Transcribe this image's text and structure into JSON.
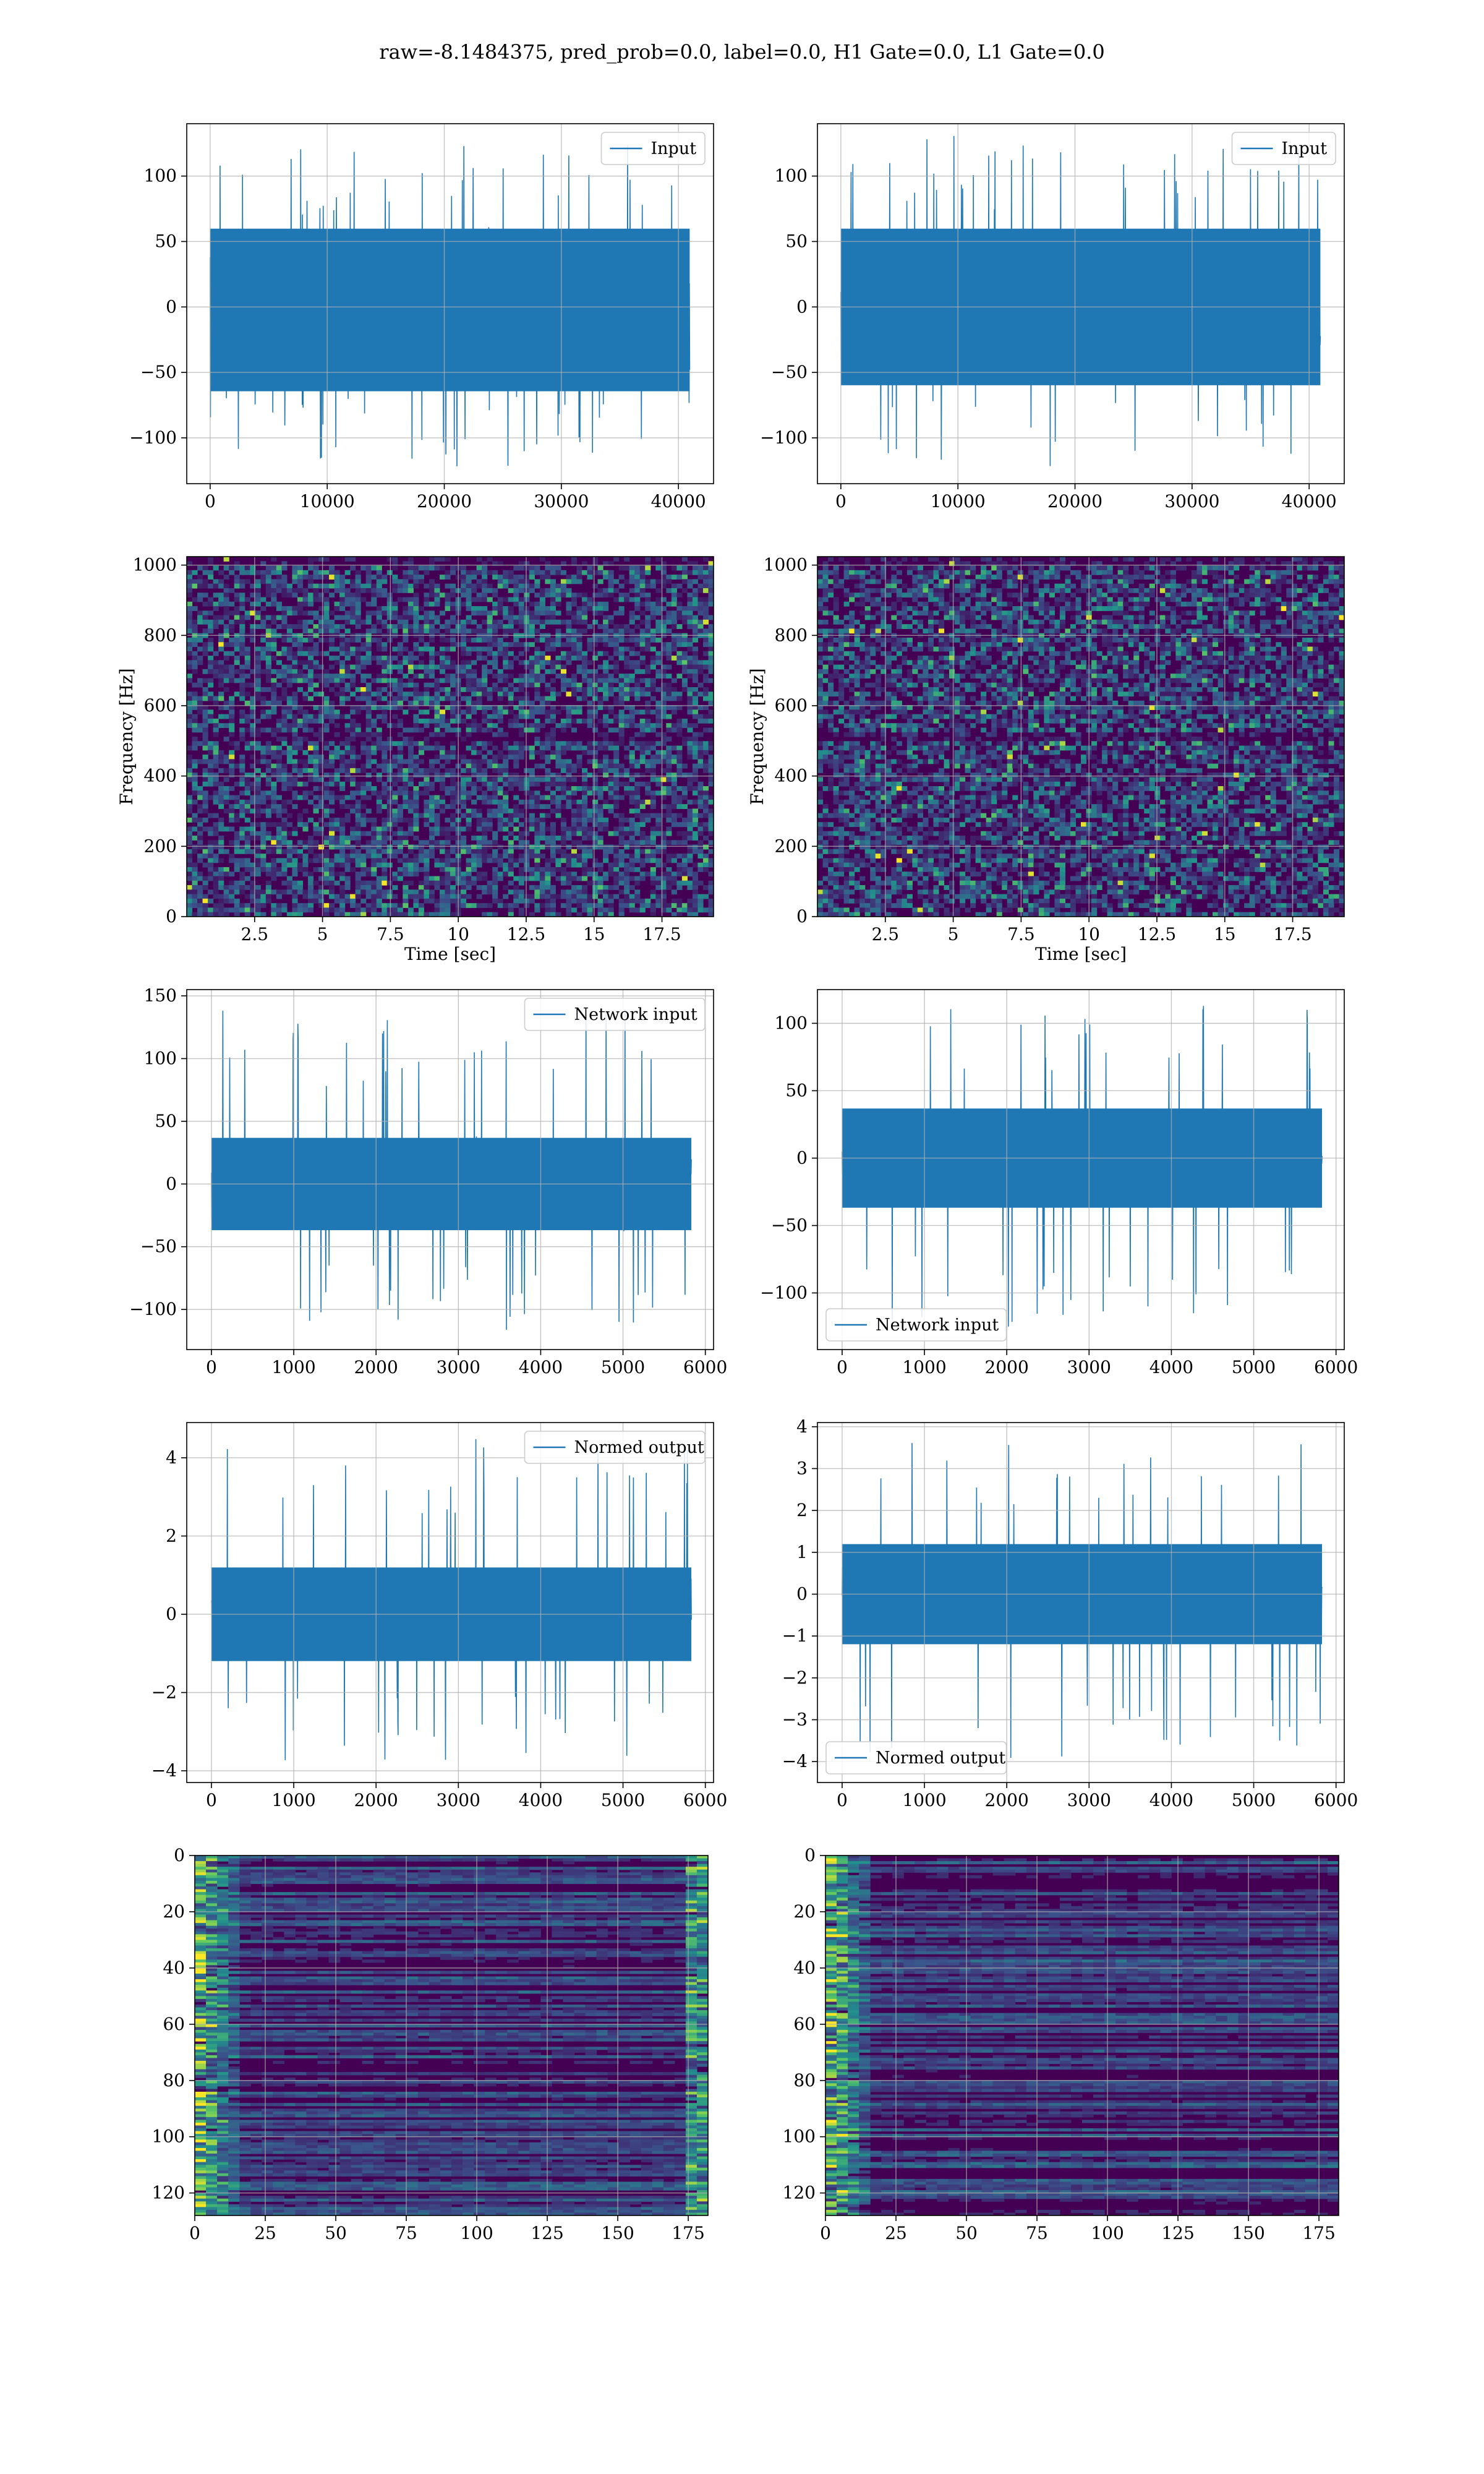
{
  "figure": {
    "title": "raw=-8.1484375, pred_prob=0.0, label=0.0, H1 Gate=0.0, L1 Gate=0.0",
    "colors": {
      "line": "#1f77b4",
      "grid": "#b0b0b0",
      "cmap": [
        "#440154",
        "#3b528b",
        "#21918c",
        "#5ec962",
        "#fde725"
      ]
    }
  },
  "chart_data": [
    {
      "id": "r1c1",
      "type": "line",
      "title": "",
      "xlabel": "",
      "ylabel": "",
      "legend": {
        "label": "Input",
        "loc": "upper right"
      },
      "xlim": [
        -2000,
        43000
      ],
      "ylim": [
        -135,
        140
      ],
      "xticks": [
        0,
        10000,
        20000,
        30000,
        40000
      ],
      "yticks": [
        -100,
        -50,
        0,
        50,
        100
      ],
      "series": [
        {
          "name": "Input",
          "x_range": [
            0,
            40960
          ],
          "band": [
            -70,
            65
          ],
          "extreme": [
            -123,
            127
          ]
        }
      ],
      "grid": true
    },
    {
      "id": "r1c2",
      "type": "line",
      "title": "",
      "xlabel": "",
      "ylabel": "",
      "legend": {
        "label": "Input",
        "loc": "upper right"
      },
      "xlim": [
        -2000,
        43000
      ],
      "ylim": [
        -135,
        140
      ],
      "xticks": [
        0,
        10000,
        20000,
        30000,
        40000
      ],
      "yticks": [
        -100,
        -50,
        0,
        50,
        100
      ],
      "series": [
        {
          "name": "Input",
          "x_range": [
            0,
            40960
          ],
          "band": [
            -65,
            65
          ],
          "extreme": [
            -122,
            132
          ]
        }
      ],
      "grid": true
    },
    {
      "id": "r2c1",
      "type": "heatmap",
      "title": "",
      "xlabel": "Time [sec]",
      "ylabel": "Frequency [Hz]",
      "xlim": [
        0,
        19.4
      ],
      "ylim": [
        0,
        1024
      ],
      "xticks": [
        2.5,
        5.0,
        7.5,
        10.0,
        12.5,
        15.0,
        17.5
      ],
      "yticks": [
        0,
        200,
        400,
        600,
        800,
        1000
      ],
      "grid": true
    },
    {
      "id": "r2c2",
      "type": "heatmap",
      "title": "",
      "xlabel": "Time [sec]",
      "ylabel": "Frequency [Hz]",
      "xlim": [
        0,
        19.4
      ],
      "ylim": [
        0,
        1024
      ],
      "xticks": [
        2.5,
        5.0,
        7.5,
        10.0,
        12.5,
        15.0,
        17.5
      ],
      "yticks": [
        0,
        200,
        400,
        600,
        800,
        1000
      ],
      "grid": true
    },
    {
      "id": "r3c1",
      "type": "line",
      "title": "",
      "xlabel": "",
      "ylabel": "",
      "legend": {
        "label": "Network input",
        "loc": "upper right"
      },
      "xlim": [
        -300,
        6100
      ],
      "ylim": [
        -132,
        155
      ],
      "xticks": [
        0,
        1000,
        2000,
        3000,
        4000,
        5000,
        6000
      ],
      "yticks": [
        -100,
        -50,
        0,
        50,
        100,
        150
      ],
      "series": [
        {
          "name": "Network input",
          "x_range": [
            0,
            5830
          ],
          "band": [
            -40,
            40
          ],
          "extreme": [
            -118,
            142
          ]
        }
      ],
      "grid": true
    },
    {
      "id": "r3c2",
      "type": "line",
      "title": "",
      "xlabel": "",
      "ylabel": "",
      "legend": {
        "label": "Network input",
        "loc": "lower left"
      },
      "xlim": [
        -300,
        6100
      ],
      "ylim": [
        -142,
        125
      ],
      "xticks": [
        0,
        1000,
        2000,
        3000,
        4000,
        5000,
        6000
      ],
      "yticks": [
        -100,
        -50,
        0,
        50,
        100
      ],
      "series": [
        {
          "name": "Network input",
          "x_range": [
            0,
            5830
          ],
          "band": [
            -40,
            40
          ],
          "extreme": [
            -128,
            114
          ]
        }
      ],
      "grid": true
    },
    {
      "id": "r4c1",
      "type": "line",
      "title": "",
      "xlabel": "",
      "ylabel": "",
      "legend": {
        "label": "Normed output",
        "loc": "upper right"
      },
      "xlim": [
        -300,
        6100
      ],
      "ylim": [
        -4.3,
        4.9
      ],
      "xticks": [
        0,
        1000,
        2000,
        3000,
        4000,
        5000,
        6000
      ],
      "yticks": [
        -4,
        -2,
        0,
        2,
        4
      ],
      "series": [
        {
          "name": "Normed output",
          "x_range": [
            0,
            5830
          ],
          "band": [
            -1.3,
            1.3
          ],
          "extreme": [
            -3.8,
            4.6
          ]
        }
      ],
      "grid": true
    },
    {
      "id": "r4c2",
      "type": "line",
      "title": "",
      "xlabel": "",
      "ylabel": "",
      "legend": {
        "label": "Normed output",
        "loc": "lower left"
      },
      "xlim": [
        -300,
        6100
      ],
      "ylim": [
        -4.5,
        4.1
      ],
      "xticks": [
        0,
        1000,
        2000,
        3000,
        4000,
        5000,
        6000
      ],
      "yticks": [
        -4,
        -3,
        -2,
        -1,
        0,
        1,
        2,
        3,
        4
      ],
      "series": [
        {
          "name": "Normed output",
          "x_range": [
            0,
            5830
          ],
          "band": [
            -1.3,
            1.3
          ],
          "extreme": [
            -4.1,
            3.7
          ]
        }
      ],
      "grid": true
    },
    {
      "id": "r5c1",
      "type": "heatmap",
      "title": "",
      "xlabel": "",
      "ylabel": "",
      "xlim": [
        0,
        182
      ],
      "ylim": [
        0,
        128
      ],
      "y_inverted": true,
      "xticks": [
        0,
        25,
        50,
        75,
        100,
        125,
        150,
        175
      ],
      "yticks": [
        0,
        20,
        40,
        60,
        80,
        100,
        120
      ],
      "grid": true
    },
    {
      "id": "r5c2",
      "type": "heatmap",
      "title": "",
      "xlabel": "",
      "ylabel": "",
      "xlim": [
        0,
        182
      ],
      "ylim": [
        0,
        128
      ],
      "y_inverted": true,
      "xticks": [
        0,
        25,
        50,
        75,
        100,
        125,
        150,
        175
      ],
      "yticks": [
        0,
        20,
        40,
        60,
        80,
        100,
        120
      ],
      "grid": true
    }
  ]
}
